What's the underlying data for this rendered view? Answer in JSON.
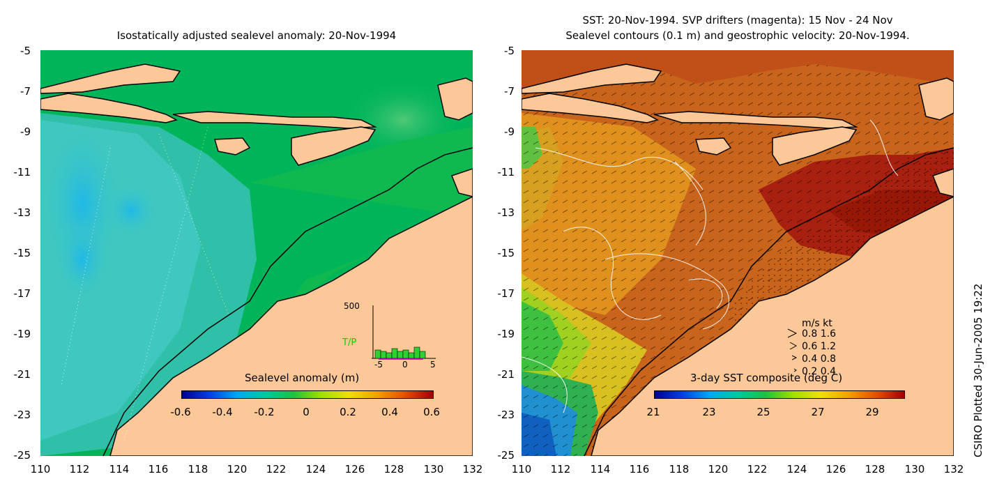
{
  "left_panel": {
    "title": "Isostatically adjusted sealevel anomaly: 20-Nov-1994",
    "colorbar_title": "Sealevel anomaly (m)",
    "colorbar_ticks": [
      "-0.6",
      "-0.4",
      "-0.2",
      "0",
      "0.2",
      "0.4",
      "0.6"
    ],
    "colorbar_colors": [
      "#00008c",
      "#0040e0",
      "#00a8f0",
      "#00c8a0",
      "#20c040",
      "#a0e000",
      "#f0e000",
      "#f0a000",
      "#e05000",
      "#a00000"
    ],
    "inset": {
      "ymax_label": "500",
      "series_label": "T/P",
      "x_ticks": [
        "-5",
        "0",
        "5"
      ]
    }
  },
  "right_panel": {
    "title_line1": "SST: 20-Nov-1994. SVP drifters (magenta): 15 Nov - 24 Nov",
    "title_line2": "Sealevel contours (0.1 m) and geostrophic velocity: 20-Nov-1994.",
    "colorbar_title": "3-day SST composite (deg C)",
    "colorbar_ticks": [
      "21",
      "23",
      "25",
      "27",
      "29"
    ],
    "colorbar_colors": [
      "#00008c",
      "#0040e0",
      "#00a8f0",
      "#00c8a0",
      "#20c040",
      "#a0e000",
      "#f0e000",
      "#f0a000",
      "#e05000",
      "#a00000"
    ],
    "velocity_legend": {
      "header": "m/s  kt",
      "rows": [
        "0.8  1.6",
        "0.6  1.2",
        "0.4  0.8",
        "0.2  0.4"
      ]
    }
  },
  "axes": {
    "y_ticks": [
      "-5",
      "-7",
      "-9",
      "-11",
      "-13",
      "-15",
      "-17",
      "-19",
      "-21",
      "-23",
      "-25"
    ],
    "x_ticks": [
      "110",
      "112",
      "114",
      "116",
      "118",
      "120",
      "122",
      "124",
      "126",
      "128",
      "130",
      "132"
    ]
  },
  "side_label": "CSIRO Plotted 30-Jun-2005 19:22",
  "colors": {
    "land": "#fcc898",
    "sea_green": "#00b45a",
    "sea_cyan": "#40c8b4",
    "sst_warm": "#c06010",
    "sst_hot": "#a01808"
  }
}
